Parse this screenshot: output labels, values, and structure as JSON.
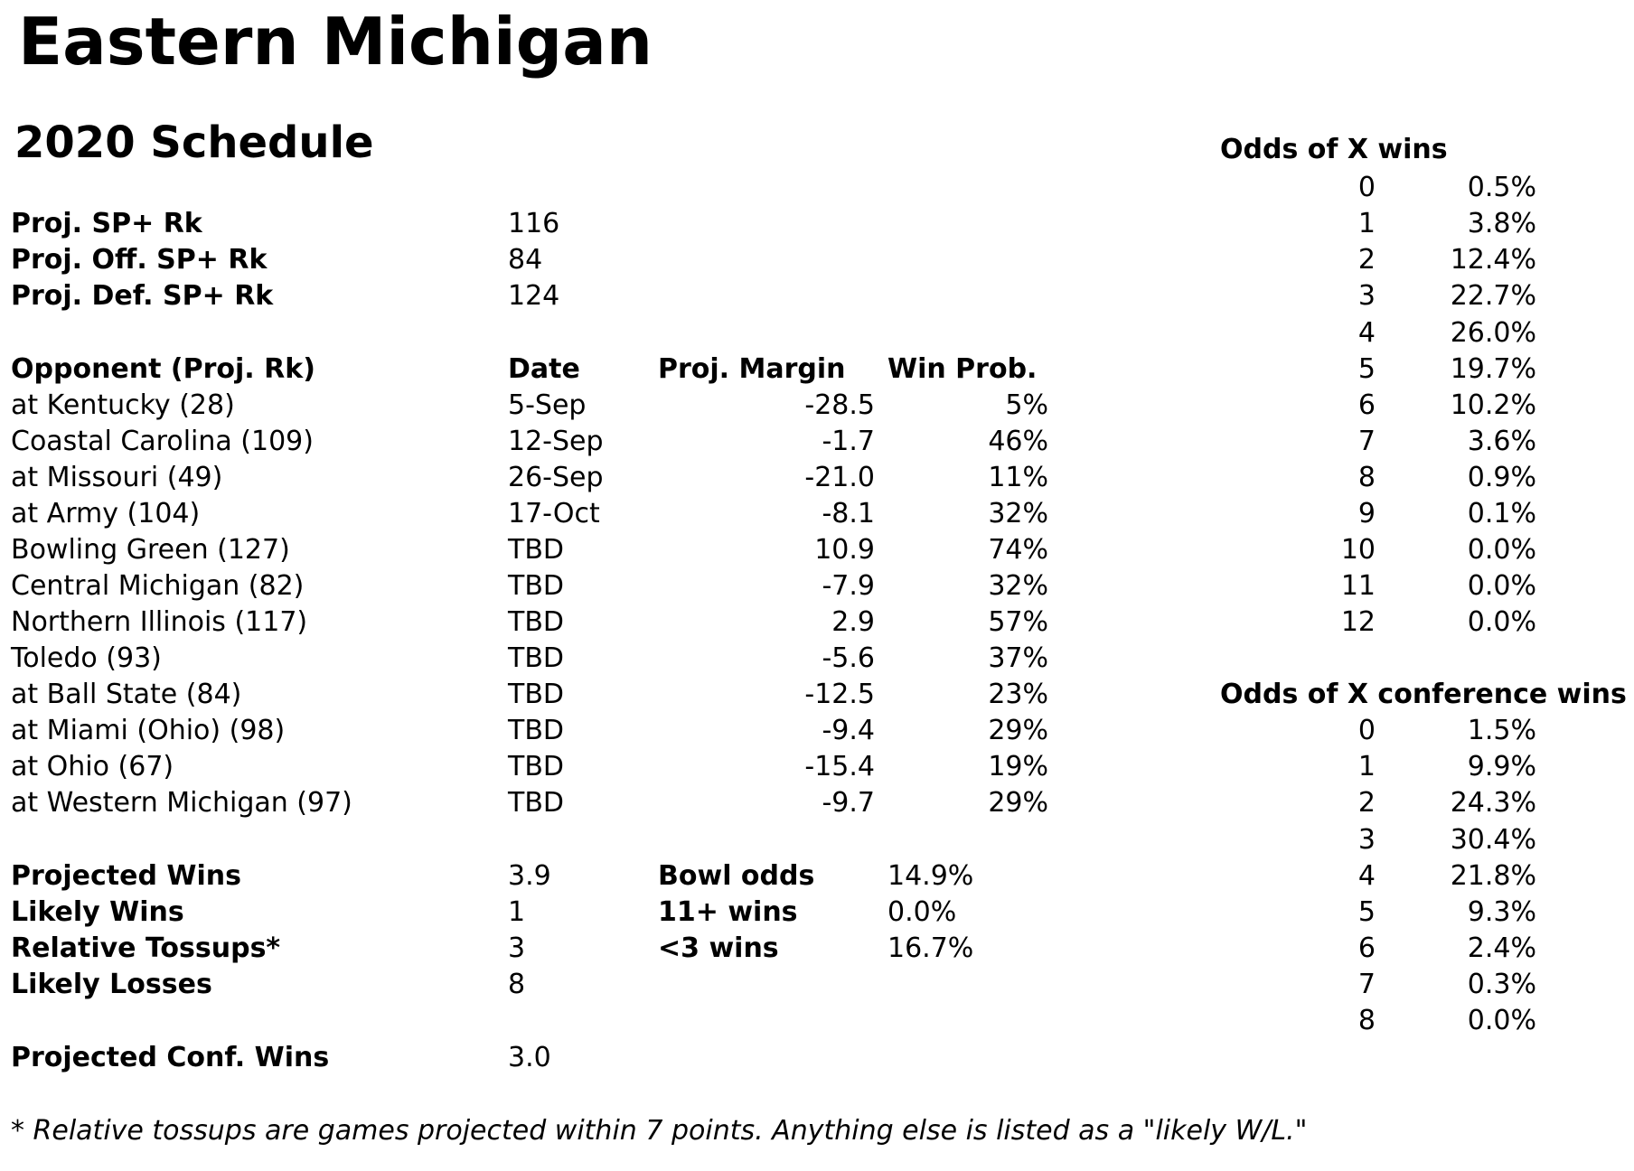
{
  "title": "Eastern Michigan",
  "subtitle": "2020 Schedule",
  "rankings": [
    {
      "label": "Proj. SP+ Rk",
      "value": "116"
    },
    {
      "label": "Proj. Off. SP+ Rk",
      "value": "84"
    },
    {
      "label": "Proj. Def. SP+ Rk",
      "value": "124"
    }
  ],
  "schedule": {
    "headers": {
      "opponent": "Opponent (Proj. Rk)",
      "date": "Date",
      "margin": "Proj. Margin",
      "winprob": "Win Prob."
    },
    "games": [
      {
        "opponent": "at Kentucky (28)",
        "date": "5-Sep",
        "margin": "-28.5",
        "winprob": "5%"
      },
      {
        "opponent": "Coastal Carolina (109)",
        "date": "12-Sep",
        "margin": "-1.7",
        "winprob": "46%"
      },
      {
        "opponent": "at Missouri (49)",
        "date": "26-Sep",
        "margin": "-21.0",
        "winprob": "11%"
      },
      {
        "opponent": "at Army (104)",
        "date": "17-Oct",
        "margin": "-8.1",
        "winprob": "32%"
      },
      {
        "opponent": "Bowling Green (127)",
        "date": "TBD",
        "margin": "10.9",
        "winprob": "74%"
      },
      {
        "opponent": "Central Michigan (82)",
        "date": "TBD",
        "margin": "-7.9",
        "winprob": "32%"
      },
      {
        "opponent": "Northern Illinois (117)",
        "date": "TBD",
        "margin": "2.9",
        "winprob": "57%"
      },
      {
        "opponent": "Toledo (93)",
        "date": "TBD",
        "margin": "-5.6",
        "winprob": "37%"
      },
      {
        "opponent": "at Ball State (84)",
        "date": "TBD",
        "margin": "-12.5",
        "winprob": "23%"
      },
      {
        "opponent": "at Miami (Ohio) (98)",
        "date": "TBD",
        "margin": "-9.4",
        "winprob": "29%"
      },
      {
        "opponent": "at Ohio (67)",
        "date": "TBD",
        "margin": "-15.4",
        "winprob": "19%"
      },
      {
        "opponent": "at Western Michigan (97)",
        "date": "TBD",
        "margin": "-9.7",
        "winprob": "29%"
      }
    ]
  },
  "summary": [
    {
      "label": "Projected Wins",
      "value": "3.9"
    },
    {
      "label": "Likely Wins",
      "value": "1"
    },
    {
      "label": "Relative Tossups*",
      "value": "3"
    },
    {
      "label": "Likely Losses",
      "value": "8"
    }
  ],
  "odds_summary": [
    {
      "label": "Bowl odds",
      "value": "14.9%"
    },
    {
      "label": "11+ wins",
      "value": "0.0%"
    },
    {
      "label": "<3 wins",
      "value": "16.7%"
    }
  ],
  "conf_wins": {
    "label": "Projected Conf. Wins",
    "value": "3.0"
  },
  "odds_wins": {
    "title": "Odds of X wins",
    "rows": [
      {
        "wins": "0",
        "pct": "0.5%"
      },
      {
        "wins": "1",
        "pct": "3.8%"
      },
      {
        "wins": "2",
        "pct": "12.4%"
      },
      {
        "wins": "3",
        "pct": "22.7%"
      },
      {
        "wins": "4",
        "pct": "26.0%"
      },
      {
        "wins": "5",
        "pct": "19.7%"
      },
      {
        "wins": "6",
        "pct": "10.2%"
      },
      {
        "wins": "7",
        "pct": "3.6%"
      },
      {
        "wins": "8",
        "pct": "0.9%"
      },
      {
        "wins": "9",
        "pct": "0.1%"
      },
      {
        "wins": "10",
        "pct": "0.0%"
      },
      {
        "wins": "11",
        "pct": "0.0%"
      },
      {
        "wins": "12",
        "pct": "0.0%"
      }
    ]
  },
  "odds_conf_wins": {
    "title": "Odds of X conference wins",
    "rows": [
      {
        "wins": "0",
        "pct": "1.5%"
      },
      {
        "wins": "1",
        "pct": "9.9%"
      },
      {
        "wins": "2",
        "pct": "24.3%"
      },
      {
        "wins": "3",
        "pct": "30.4%"
      },
      {
        "wins": "4",
        "pct": "21.8%"
      },
      {
        "wins": "5",
        "pct": "9.3%"
      },
      {
        "wins": "6",
        "pct": "2.4%"
      },
      {
        "wins": "7",
        "pct": "0.3%"
      },
      {
        "wins": "8",
        "pct": "0.0%"
      }
    ]
  },
  "footnote": "* Relative tossups are games projected within 7 points. Anything else is listed as a \"likely W/L.\""
}
